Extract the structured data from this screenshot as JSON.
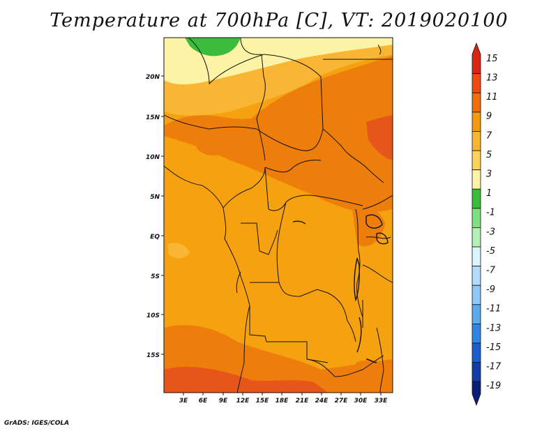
{
  "title": "Temperature at 700hPa [C], VT: 2019020100",
  "credit": "GrADS: IGES/COLA",
  "map": {
    "lat_labels": [
      "20N",
      "15N",
      "10N",
      "5N",
      "EQ",
      "5S",
      "10S",
      "15S"
    ],
    "lon_labels": [
      "3E",
      "6E",
      "9E",
      "12E",
      "15E",
      "18E",
      "21E",
      "24E",
      "27E",
      "30E",
      "33E"
    ],
    "colors": {
      "green": "#3cbc3c",
      "pale": "#fdf3a6",
      "yellow_orange": "#fbd35a",
      "light_orange": "#f9b634",
      "orange": "#f5a110",
      "dark_orange": "#ee7e0c",
      "red_orange": "#e6561a",
      "border": "#111111"
    }
  },
  "colorbar": {
    "labels": [
      "15",
      "13",
      "11",
      "9",
      "7",
      "5",
      "3",
      "1",
      "-1",
      "-3",
      "-5",
      "-7",
      "-9",
      "-11",
      "-13",
      "-15",
      "-17",
      "-19"
    ],
    "colors": [
      "#d92614",
      "#ee4a10",
      "#f26c10",
      "#f59a10",
      "#f8b630",
      "#fbd35a",
      "#fdf3a6",
      "#3cbc3c",
      "#7fe07f",
      "#b4f0b4",
      "#dcf5ff",
      "#b4dcfa",
      "#8cc8f8",
      "#5aaaf0",
      "#2f86e6",
      "#1a5ed0",
      "#0f3ca8",
      "#0a1e78"
    ]
  }
}
